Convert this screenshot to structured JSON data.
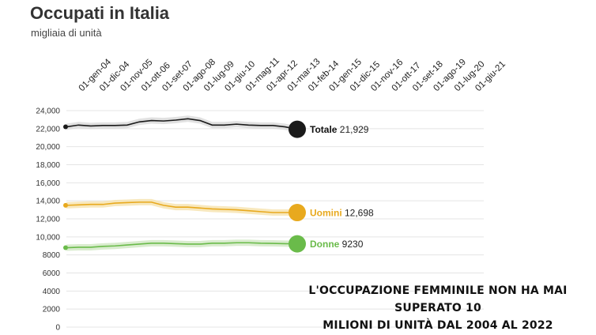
{
  "title": "Occupati in Italia",
  "subtitle": "migliaia di unità",
  "annotation": {
    "line1": "L'occupazione femminile non ha mai superato 10",
    "line2": "milioni di unità dal 2004 al 2022"
  },
  "chart_data": {
    "type": "line",
    "title": "Occupati in Italia",
    "subtitle": "migliaia di unità",
    "x_tick_labels": [
      "01-gen-04",
      "01-dic-04",
      "01-nov-05",
      "01-ott-06",
      "01-set-07",
      "01-ago-08",
      "01-lug-09",
      "01-giu-10",
      "01-mag-11",
      "01-apr-12",
      "01-mar-13",
      "01-feb-14",
      "01-gen-15",
      "01-dic-15",
      "01-nov-16",
      "01-ott-17",
      "01-set-18",
      "01-ago-19",
      "01-lug-20",
      "01-giu-21"
    ],
    "y_ticks": [
      0,
      2000,
      4000,
      6000,
      8000,
      10000,
      12000,
      14000,
      16000,
      18000,
      20000,
      22000,
      24000
    ],
    "y_tick_labels": [
      "0",
      "2000",
      "4000",
      "6000",
      "8000",
      "10,000",
      "12,000",
      "14,000",
      "16,000",
      "18,000",
      "20,000",
      "22,000",
      "24,000"
    ],
    "ylim": [
      0,
      24000
    ],
    "grid": true,
    "series": [
      {
        "name": "Totale",
        "end_label": "21,929",
        "color": "#1a1a1a",
        "band_color": "#d9d9d9",
        "values": [
          22200,
          22400,
          22300,
          22350,
          22350,
          22400,
          22750,
          22900,
          22850,
          22950,
          23100,
          22900,
          22400,
          22400,
          22500,
          22400,
          22350,
          22350,
          22200,
          21929
        ]
      },
      {
        "name": "Uomini",
        "end_label": "12,698",
        "color": "#e8a91e",
        "band_color": "#f6e2ad",
        "values": [
          13500,
          13550,
          13600,
          13600,
          13750,
          13800,
          13850,
          13850,
          13500,
          13300,
          13300,
          13200,
          13100,
          13050,
          13000,
          12900,
          12800,
          12700,
          12700,
          12698
        ]
      },
      {
        "name": "Donne",
        "end_label": "9230",
        "color": "#6abb4a",
        "band_color": "#cfe7c2",
        "values": [
          8800,
          8850,
          8850,
          8950,
          9000,
          9100,
          9200,
          9300,
          9300,
          9250,
          9200,
          9200,
          9300,
          9300,
          9350,
          9350,
          9300,
          9280,
          9250,
          9230
        ]
      }
    ]
  }
}
